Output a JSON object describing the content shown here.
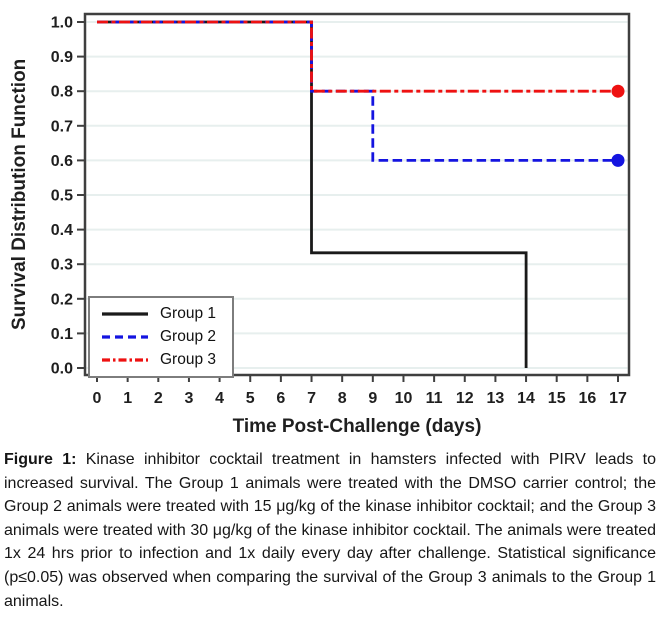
{
  "figure": {
    "caption_label": "Figure 1:",
    "caption_text": "Kinase inhibitor cocktail treatment in hamsters infected with PIRV leads to increased survival. The Group 1 animals were treated with the DMSO carrier control; the Group 2 animals were treated with 15 μg/kg of the kinase inhibitor cocktail; and the Group 3 animals were treated with 30 μg/kg of the kinase inhibitor cocktail. The animals were treated 1x 24 hrs prior to infection and 1x daily every day after challenge. Statistical significance (p≤0.05) was observed when comparing the survival of the Group 3 animals to the Group 1 animals."
  },
  "chart_data": {
    "type": "line",
    "subtype": "kaplan-meier-step",
    "title": "",
    "xlabel": "Time Post-Challenge (days)",
    "ylabel": "Survival Distribution Function",
    "xlim": [
      0,
      17
    ],
    "ylim": [
      0,
      1
    ],
    "xticks": [
      0,
      1,
      2,
      3,
      4,
      5,
      6,
      7,
      8,
      9,
      10,
      11,
      12,
      13,
      14,
      15,
      16,
      17
    ],
    "yticks": [
      "0.0",
      "0.1",
      "0.2",
      "0.3",
      "0.4",
      "0.5",
      "0.6",
      "0.7",
      "0.8",
      "0.9",
      "1.0"
    ],
    "grid": "horizontal",
    "gridline_color": "#e7efee",
    "frame_color": "#3f3f3f",
    "legend_position": "bottom-left",
    "series": [
      {
        "name": "Group 1",
        "color": "#1a1a1a",
        "style": "solid",
        "points": [
          [
            0,
            1
          ],
          [
            7,
            1
          ],
          [
            7,
            0.333
          ],
          [
            14,
            0.333
          ],
          [
            14,
            0
          ]
        ],
        "end_marker": null
      },
      {
        "name": "Group 2",
        "color": "#1414e0",
        "style": "dashed",
        "points": [
          [
            0,
            1
          ],
          [
            7,
            1
          ],
          [
            7,
            0.8
          ],
          [
            9,
            0.8
          ],
          [
            9,
            0.6
          ],
          [
            17,
            0.6
          ]
        ],
        "end_marker": [
          17,
          0.6
        ]
      },
      {
        "name": "Group 3",
        "color": "#ee1111",
        "style": "dash-dot",
        "points": [
          [
            0,
            1
          ],
          [
            7,
            1
          ],
          [
            7,
            0.8
          ],
          [
            17,
            0.8
          ]
        ],
        "end_marker": [
          17,
          0.8
        ]
      }
    ]
  }
}
